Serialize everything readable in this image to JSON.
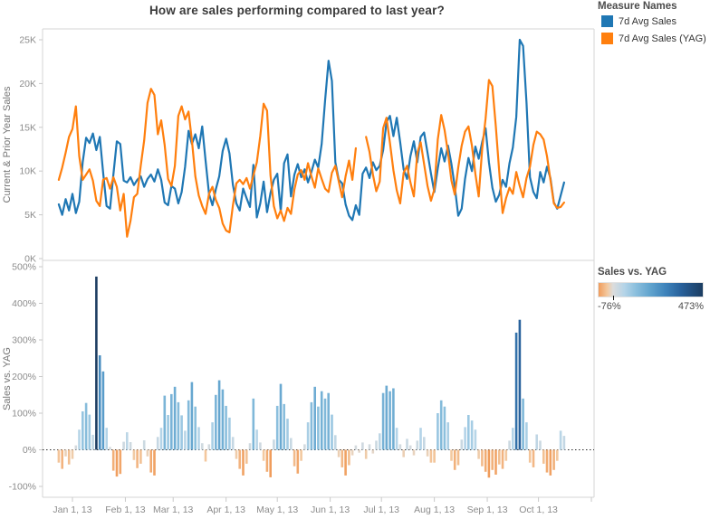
{
  "page": {
    "title": "How are sales performing compared to last year?",
    "background": "#ffffff"
  },
  "legend_measures": {
    "title": "Measure Names",
    "items": [
      {
        "label": "7d Avg Sales",
        "color": "#1f77b4"
      },
      {
        "label": "7d Avg Sales (YAG)",
        "color": "#ff7f0e"
      }
    ]
  },
  "legend_color": {
    "title": "Sales vs. YAG",
    "min_label": "-76%",
    "max_label": "473%",
    "min": -76,
    "max": 473,
    "ramp_stops": [
      {
        "value": -76,
        "color": "#f09c5b"
      },
      {
        "value": -30,
        "color": "#f3c9a0"
      },
      {
        "value": 0,
        "color": "#dcdcdc"
      },
      {
        "value": 60,
        "color": "#b4d4e8"
      },
      {
        "value": 120,
        "color": "#8bbfdd"
      },
      {
        "value": 200,
        "color": "#5fa2cd"
      },
      {
        "value": 280,
        "color": "#3d82ba"
      },
      {
        "value": 360,
        "color": "#28609a"
      },
      {
        "value": 473,
        "color": "#1c3d61"
      }
    ]
  },
  "axis_x": {
    "start_day": -8,
    "day_step": 2,
    "ticks": [
      {
        "label": "Jan 1, 13",
        "day": 0
      },
      {
        "label": "Feb 1, 13",
        "day": 31
      },
      {
        "label": "Mar 1, 13",
        "day": 59
      },
      {
        "label": "Apr 1, 13",
        "day": 90
      },
      {
        "label": "May 1, 13",
        "day": 120
      },
      {
        "label": "Jun 1, 13",
        "day": 151
      },
      {
        "label": "Jul 1, 13",
        "day": 181
      },
      {
        "label": "Aug 1, 13",
        "day": 212
      },
      {
        "label": "Sep 1, 13",
        "day": 243
      },
      {
        "label": "Oct 1, 13",
        "day": 273
      },
      {
        "label": "",
        "day": 304
      }
    ]
  },
  "chart_data": [
    {
      "type": "line",
      "title": "How are sales performing compared to last year?",
      "ylabel": "Current & Prior Year Sales",
      "unit": "thousands",
      "ylim_thousands": [
        0,
        26.2
      ],
      "y_ticks": [
        {
          "value": 0,
          "label": "0K"
        },
        {
          "value": 5,
          "label": "5K"
        },
        {
          "value": 10,
          "label": "10K"
        },
        {
          "value": 15,
          "label": "15K"
        },
        {
          "value": 20,
          "label": "20K"
        },
        {
          "value": 25,
          "label": "25K"
        }
      ],
      "x_note": "daily values every 2 days, starting Dec 24 2012 (day -8) through Oct 16 2013 (day 288)",
      "series": [
        {
          "name": "7d Avg Sales",
          "color": "#1f77b4",
          "values_thousands": [
            6.2,
            5.0,
            6.8,
            5.5,
            7.4,
            5.2,
            6.5,
            11.0,
            13.8,
            13.2,
            14.3,
            12.4,
            13.9,
            9.8,
            6.0,
            5.7,
            9.6,
            13.4,
            13.1,
            8.9,
            8.7,
            9.3,
            8.4,
            9.0,
            9.4,
            8.2,
            9.1,
            9.6,
            8.8,
            10.2,
            9.0,
            6.4,
            6.1,
            8.3,
            8.0,
            6.3,
            7.6,
            10.5,
            14.6,
            13.1,
            14.2,
            12.6,
            15.1,
            11.2,
            7.4,
            6.1,
            7.9,
            9.4,
            12.3,
            13.7,
            12.0,
            8.4,
            6.3,
            5.5,
            8.0,
            6.9,
            5.9,
            10.7,
            4.7,
            6.3,
            8.8,
            5.3,
            7.5,
            9.0,
            9.7,
            5.4,
            10.9,
            11.9,
            7.1,
            9.6,
            10.8,
            9.3,
            10.2,
            8.7,
            9.9,
            11.3,
            10.4,
            13.1,
            18.1,
            22.6,
            20.3,
            11.0,
            9.0,
            8.6,
            6.2,
            4.9,
            4.4,
            6.1,
            5.0,
            9.7,
            10.4,
            9.2,
            11.0,
            10.1,
            10.6,
            12.4,
            15.6,
            16.3,
            14.0,
            16.1,
            13.3,
            10.2,
            9.1,
            11.7,
            13.4,
            11.0,
            13.9,
            14.4,
            12.1,
            9.7,
            7.6,
            10.3,
            12.6,
            11.1,
            12.9,
            10.8,
            8.2,
            4.9,
            5.7,
            9.1,
            11.5,
            10.0,
            12.8,
            11.4,
            13.3,
            14.9,
            11.0,
            8.1,
            6.5,
            7.3,
            9.0,
            8.2,
            10.9,
            12.7,
            16.2,
            25.0,
            24.3,
            17.8,
            9.3,
            7.6,
            6.9,
            9.9,
            8.7,
            10.5,
            9.2,
            6.4,
            5.7,
            7.2,
            8.7
          ]
        },
        {
          "name": "7d Avg Sales (YAG)",
          "color": "#ff7f0e",
          "values_thousands": [
            9.0,
            10.4,
            12.1,
            13.9,
            14.8,
            17.4,
            11.7,
            9.0,
            9.6,
            10.2,
            8.9,
            6.6,
            6.0,
            9.0,
            9.2,
            8.0,
            9.3,
            8.2,
            5.5,
            7.4,
            2.5,
            4.3,
            7.0,
            7.4,
            10.6,
            13.5,
            17.8,
            19.4,
            18.7,
            14.2,
            15.8,
            13.0,
            9.1,
            8.3,
            10.6,
            16.3,
            17.4,
            15.9,
            16.8,
            13.5,
            9.4,
            7.2,
            6.0,
            5.1,
            7.4,
            8.2,
            6.7,
            5.8,
            4.0,
            3.2,
            3.0,
            6.1,
            8.6,
            9.0,
            8.5,
            9.2,
            8.0,
            9.5,
            11.0,
            14.0,
            17.7,
            16.9,
            9.5,
            6.0,
            4.6,
            5.5,
            4.3,
            5.8,
            5.1,
            7.9,
            9.6,
            10.1,
            9.0,
            10.9,
            9.4,
            8.1,
            10.3,
            9.1,
            8.0,
            7.6,
            9.8,
            10.6,
            8.8,
            7.0,
            9.4,
            11.2,
            9.0,
            12.6,
            null,
            null,
            13.9,
            12.2,
            9.6,
            7.7,
            8.8,
            14.9,
            16.1,
            13.2,
            10.1,
            7.8,
            6.3,
            9.8,
            10.6,
            8.7,
            7.1,
            12.1,
            13.3,
            10.8,
            8.3,
            6.6,
            7.9,
            13.6,
            16.4,
            14.7,
            12.1,
            8.9,
            7.3,
            10.4,
            12.9,
            14.5,
            15.1,
            12.9,
            9.7,
            7.1,
            12.5,
            16.0,
            20.4,
            19.7,
            15.1,
            9.9,
            5.2,
            6.9,
            8.1,
            7.4,
            9.9,
            8.3,
            7.0,
            9.2,
            10.5,
            13.0,
            14.5,
            14.2,
            13.6,
            11.7,
            9.0,
            6.3,
            5.8,
            5.9,
            6.4
          ]
        }
      ]
    },
    {
      "type": "bar",
      "ylabel": "Sales vs. YAG",
      "unit": "percent",
      "ylim_pct": [
        -129,
        517
      ],
      "y_ticks": [
        {
          "value": -100,
          "label": "-100%"
        },
        {
          "value": 0,
          "label": "0%"
        },
        {
          "value": 100,
          "label": "100%"
        },
        {
          "value": 200,
          "label": "200%"
        },
        {
          "value": 300,
          "label": "300%"
        },
        {
          "value": 400,
          "label": "400%"
        },
        {
          "value": 500,
          "label": "500%"
        }
      ],
      "zero_line": "dotted",
      "color_by": "value, diverging orange-blue scale -76% to 473%",
      "values_pct": [
        -35,
        -52,
        -18,
        -40,
        -25,
        12,
        55,
        105,
        128,
        96,
        41,
        473,
        258,
        214,
        60,
        8,
        -57,
        -73,
        -66,
        22,
        48,
        21,
        -28,
        -50,
        -38,
        26,
        -18,
        -62,
        -70,
        35,
        60,
        148,
        95,
        152,
        172,
        130,
        94,
        52,
        135,
        185,
        118,
        62,
        18,
        -32,
        15,
        75,
        150,
        190,
        165,
        120,
        88,
        35,
        -25,
        -52,
        -70,
        -38,
        18,
        140,
        55,
        20,
        -30,
        -60,
        -75,
        28,
        120,
        180,
        125,
        85,
        32,
        -45,
        -65,
        -30,
        15,
        75,
        130,
        172,
        118,
        160,
        140,
        155,
        96,
        40,
        -20,
        -48,
        -70,
        -42,
        -15,
        12,
        -8,
        20,
        -25,
        15,
        -10,
        25,
        45,
        155,
        175,
        160,
        168,
        60,
        15,
        -20,
        30,
        12,
        -15,
        25,
        60,
        35,
        -18,
        -35,
        -35,
        100,
        135,
        118,
        75,
        -30,
        -55,
        -42,
        28,
        62,
        95,
        80,
        55,
        -25,
        -45,
        -60,
        -76,
        -55,
        -68,
        -40,
        -52,
        -30,
        25,
        60,
        320,
        355,
        140,
        75,
        -35,
        -48,
        42,
        25,
        -38,
        -62,
        -70,
        -55,
        -30,
        52,
        38
      ]
    }
  ]
}
